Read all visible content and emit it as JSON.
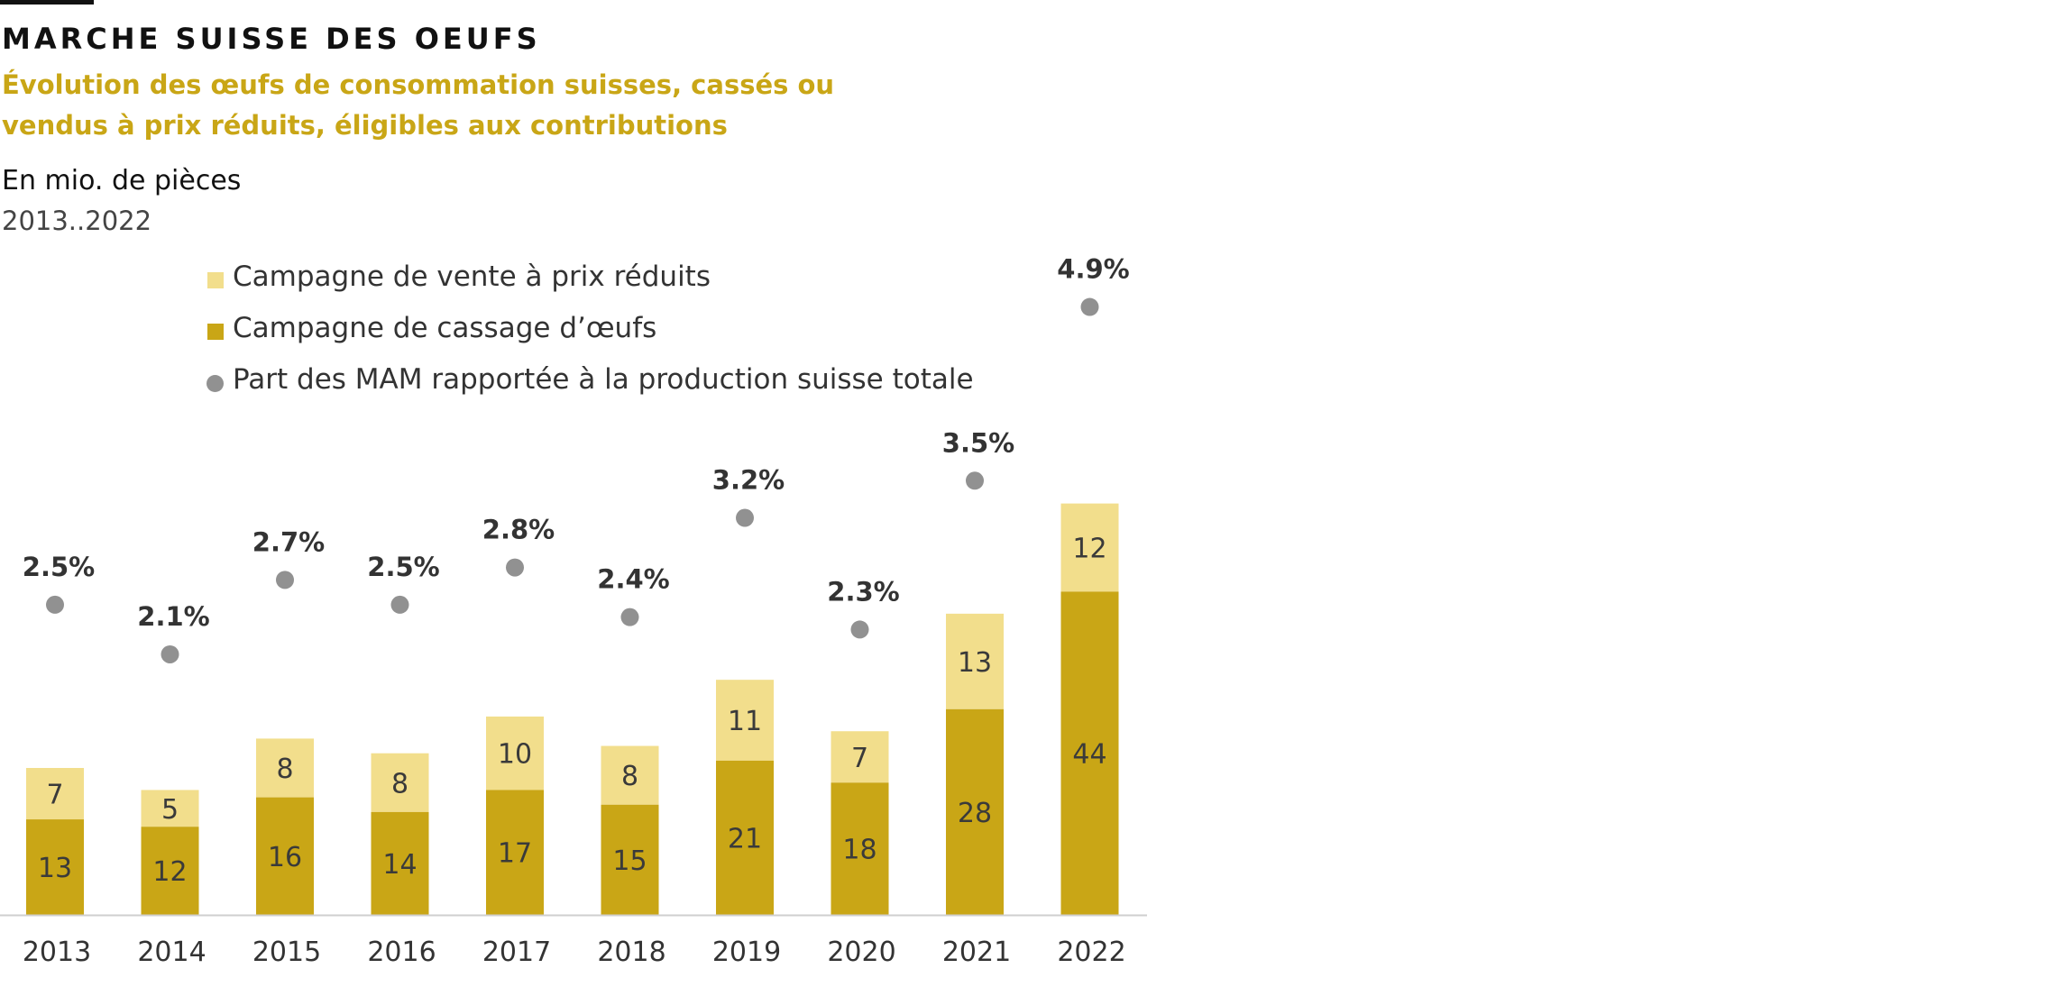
{
  "header": {
    "title": "MARCHE SUISSE DES OEUFS",
    "subtitle_line1": "Évolution des œufs de consommation suisses, cassés ou",
    "subtitle_line2": "vendus à prix réduits, éligibles aux contributions",
    "unit": "En mio. de pièces",
    "period": "2013..2022"
  },
  "legend": {
    "items": [
      {
        "label": "Campagne de vente à prix réduits",
        "color": "#f2de8c",
        "shape": "square"
      },
      {
        "label": "Campagne de cassage d’œufs",
        "color": "#c9a616",
        "shape": "square"
      },
      {
        "label": "Part des MAM rapportée à la production suisse totale",
        "color": "#919191",
        "shape": "circle"
      }
    ]
  },
  "chart_data": {
    "type": "bar",
    "stacked": true,
    "categories": [
      "2013",
      "2014",
      "2015",
      "2016",
      "2017",
      "2018",
      "2019",
      "2020",
      "2021",
      "2022"
    ],
    "series": [
      {
        "name": "Campagne de cassage d’œufs",
        "color": "#c9a616",
        "values": [
          13,
          12,
          16,
          14,
          17,
          15,
          21,
          18,
          28,
          44
        ],
        "labels": [
          "13",
          "12",
          "16",
          "14",
          "17",
          "15",
          "21",
          "18",
          "28",
          "44"
        ]
      },
      {
        "name": "Campagne de vente à prix réduits",
        "color": "#f2de8c",
        "values": [
          7,
          5,
          8,
          8,
          10,
          8,
          11,
          7,
          13,
          12
        ],
        "labels": [
          "7",
          "5",
          "8",
          "8",
          "10",
          "8",
          "11",
          "7",
          "13",
          "12"
        ]
      }
    ],
    "share_series": {
      "name": "Part des MAM rapportée à la production suisse totale",
      "color": "#919191",
      "values": [
        2.5,
        2.1,
        2.7,
        2.5,
        2.8,
        2.4,
        3.2,
        2.3,
        3.5,
        4.9
      ],
      "labels": [
        "2.5%",
        "2.1%",
        "2.7%",
        "2.5%",
        "2.8%",
        "2.4%",
        "3.2%",
        "2.3%",
        "3.5%",
        "4.9%"
      ]
    },
    "ylim": [
      0,
      56
    ],
    "share_ylim": [
      0,
      5.7
    ],
    "xlabel": "",
    "ylabel": "En mio. de pièces",
    "grid": false,
    "legend_position": "top-left"
  }
}
